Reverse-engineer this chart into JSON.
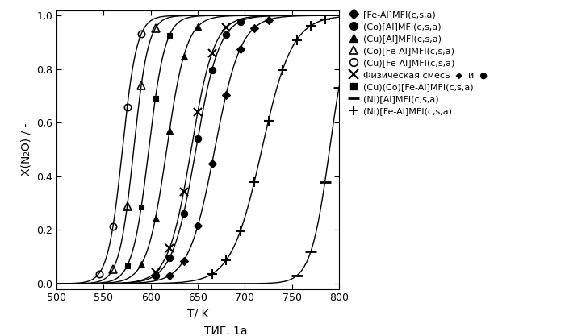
{
  "xlabel": "T/ K",
  "ylabel": "X(N₂O) / -",
  "xlim": [
    500,
    800
  ],
  "ylim": [
    -0.02,
    1.02
  ],
  "xticks": [
    500,
    550,
    600,
    650,
    700,
    750,
    800
  ],
  "yticks": [
    0.0,
    0.2,
    0.4,
    0.6,
    0.8,
    1.0
  ],
  "yticklabels": [
    "0,0",
    "0,2",
    "0,4",
    "0,6",
    "0,8",
    "1,0"
  ],
  "footer": "ΤИГ. 1a",
  "series": [
    {
      "label": "[Fe-Al]MFI(c,s,a)",
      "marker": "D",
      "fillstyle": "full",
      "markersize": 5,
      "T50": 668,
      "k": 0.072
    },
    {
      "label": "(Co)[Al]MFI(c,s,a)",
      "marker": "o",
      "fillstyle": "full",
      "markersize": 6,
      "T50": 648,
      "k": 0.08
    },
    {
      "label": "(Cu)[Al]MFI(c,s,a)",
      "marker": "^",
      "fillstyle": "full",
      "markersize": 6,
      "T50": 617,
      "k": 0.095
    },
    {
      "label": "(Co)[Fe-Al]MFI(c,s,a)",
      "marker": "^",
      "fillstyle": "none",
      "markersize": 7,
      "T50": 582,
      "k": 0.13
    },
    {
      "label": "(Cu)[Fe-Al]MFI(c,s,a)",
      "marker": "o",
      "fillstyle": "none",
      "markersize": 6,
      "T50": 570,
      "k": 0.13
    },
    {
      "label": "Физическая смесь  ◆  и  ●",
      "marker": "x",
      "fillstyle": "full",
      "markersize": 7,
      "T50": 643,
      "k": 0.082
    },
    {
      "label": "(Cu)(Co)[Fe-Al]MFI(c,s,a)",
      "marker": "s",
      "fillstyle": "full",
      "markersize": 5,
      "T50": 598,
      "k": 0.115
    },
    {
      "label": "(Ni)[Al]MFI(c,s,a)",
      "marker": "D",
      "fillstyle": "full",
      "markersize": 5,
      "T50": 790,
      "k": 0.1,
      "use_dash_marker": true
    },
    {
      "label": "(Ni)[Fe-Al]MFI(c,s,a)",
      "marker": "+",
      "fillstyle": "full",
      "markersize": 8,
      "T50": 718,
      "k": 0.062
    }
  ],
  "legend_entries": [
    {
      "marker": "D",
      "fillstyle": "full",
      "markersize": 6,
      "label": "[Fe-Al]MFI(c,s,a)"
    },
    {
      "marker": "o",
      "fillstyle": "full",
      "markersize": 7,
      "label": "(Co)[Al]MFI(c,s,a)"
    },
    {
      "marker": "^",
      "fillstyle": "full",
      "markersize": 7,
      "label": "(Cu)[Al]MFI(c,s,a)"
    },
    {
      "marker": "^",
      "fillstyle": "none",
      "markersize": 7,
      "label": "(Co)[Fe-Al]MFI(c,s,a)"
    },
    {
      "marker": "o",
      "fillstyle": "none",
      "markersize": 7,
      "label": "(Cu)[Fe-Al]MFI(c,s,a)"
    },
    {
      "marker": "x",
      "fillstyle": "full",
      "markersize": 8,
      "label": "Физическая смесь  ◆  и  ●"
    },
    {
      "marker": "s",
      "fillstyle": "full",
      "markersize": 6,
      "label": "(Cu)(Co)[Fe-Al]MFI(c,s,a)"
    },
    {
      "marker": "_",
      "fillstyle": "full",
      "markersize": 10,
      "label": "(Ni)[Al]MFI(c,s,a)"
    },
    {
      "marker": "+",
      "fillstyle": "full",
      "markersize": 8,
      "label": "(Ni)[Fe-Al]MFI(c,s,a)"
    }
  ]
}
